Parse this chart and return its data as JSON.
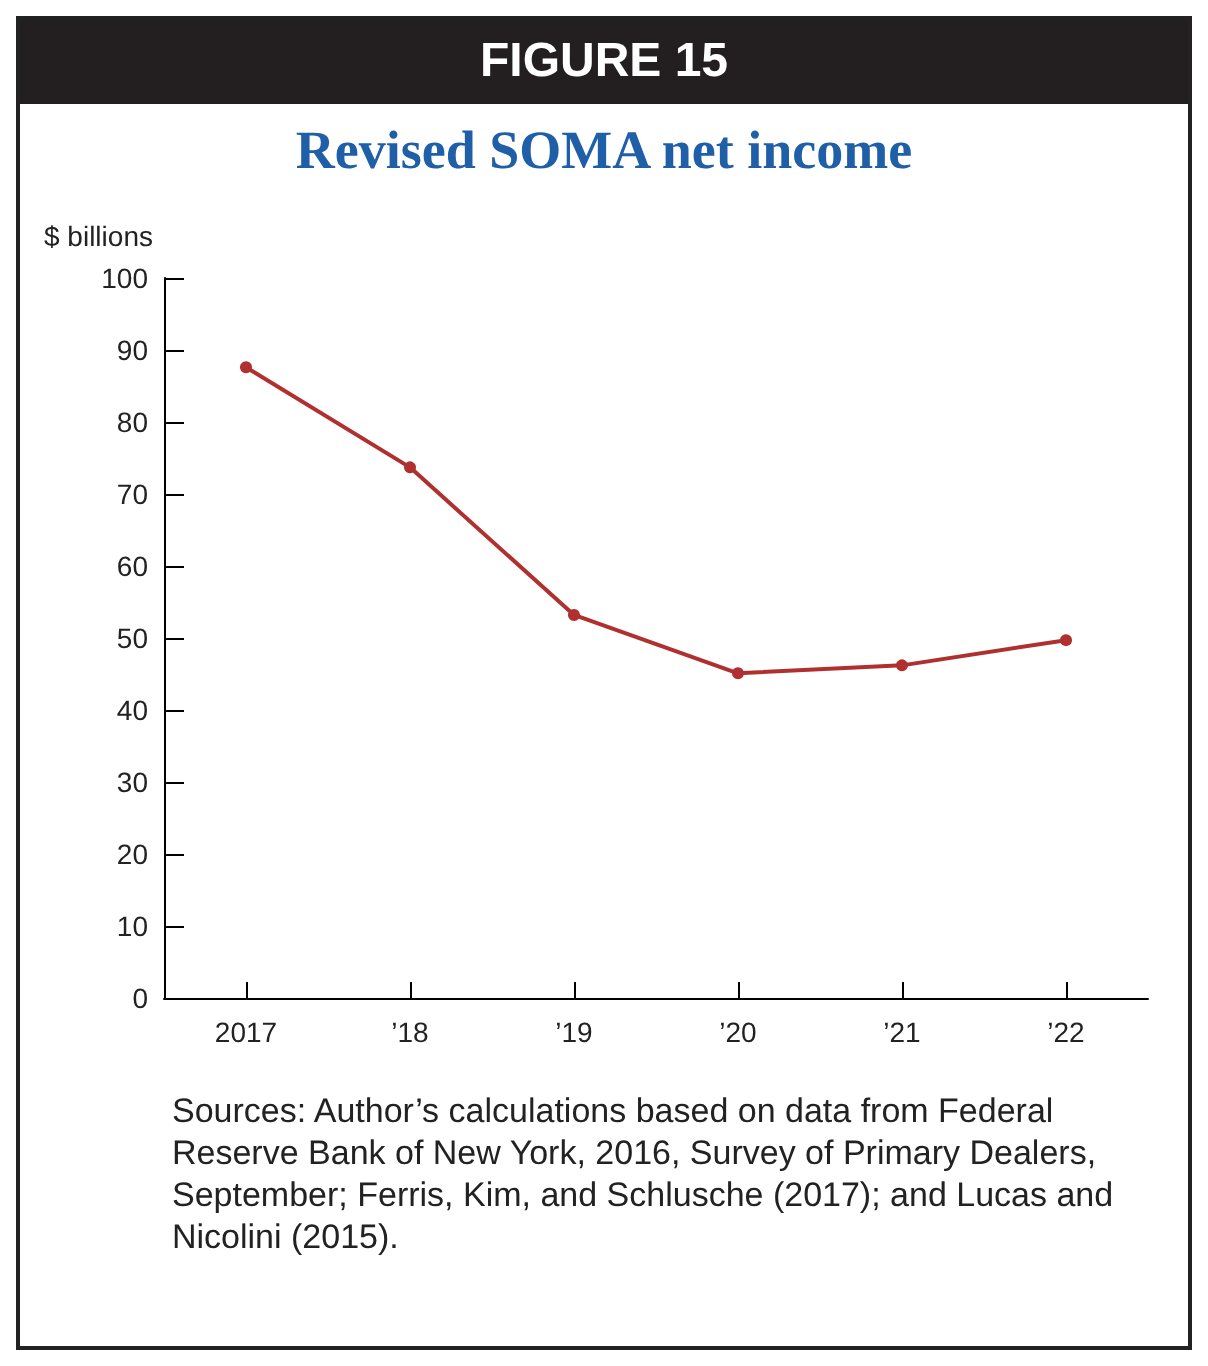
{
  "chart_data": {
    "type": "line",
    "title": "FIGURE 15",
    "subtitle": "Revised SOMA net income",
    "ylabel": "$ billions",
    "categories": [
      "2017",
      "’18",
      "’19",
      "’20",
      "’21",
      "’22"
    ],
    "series": [
      {
        "color": "#b03030",
        "values": [
          87.6,
          73.7,
          53.2,
          45.1,
          46.2,
          49.7
        ]
      }
    ],
    "ylim": [
      0,
      100
    ],
    "yticks": [
      0,
      10,
      20,
      30,
      40,
      50,
      60,
      70,
      80,
      90,
      100
    ],
    "grid": false,
    "marker": "circle",
    "line_style": "solid",
    "annotations": [
      "Sources: Author’s calculations based on data from Federal Reserve Bank of New York, 2016, Survey of Primary Dealers, September; Ferris, Kim, and Schlusche (2017); and Lucas and Nicolini (2015)."
    ]
  }
}
